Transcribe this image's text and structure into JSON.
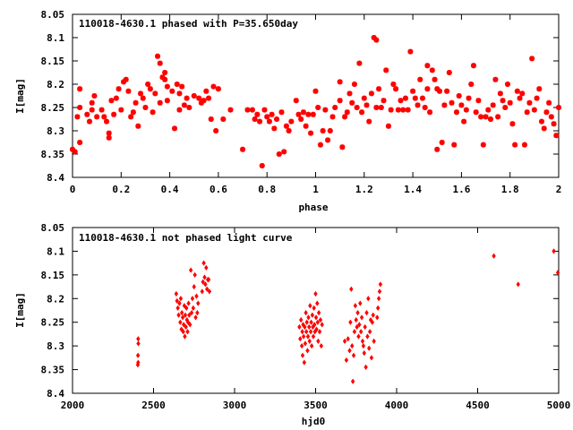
{
  "chart_data": [
    {
      "type": "scatter",
      "title": "110018-4630.1 phased with P=35.650day",
      "xlabel": "phase",
      "ylabel": "I[mag]",
      "xlim": [
        0,
        2
      ],
      "ylim": [
        8.4,
        8.05
      ],
      "y_inverted": true,
      "grid": false,
      "marker_color": "#ff0000",
      "xticks": [
        "0",
        "0.2",
        "0.4",
        "0.6",
        "0.8",
        "1",
        "1.2",
        "1.4",
        "1.6",
        "1.8",
        "2"
      ],
      "yticks": [
        "8.05",
        "8.1",
        "8.15",
        "8.2",
        "8.25",
        "8.3",
        "8.35",
        "8.4"
      ],
      "points": [
        [
          0.0,
          8.34
        ],
        [
          0.01,
          8.345
        ],
        [
          0.02,
          8.27
        ],
        [
          0.03,
          8.325
        ],
        [
          0.03,
          8.21
        ],
        [
          0.03,
          8.25
        ],
        [
          0.06,
          8.265
        ],
        [
          0.07,
          8.28
        ],
        [
          0.08,
          8.255
        ],
        [
          0.08,
          8.24
        ],
        [
          0.09,
          8.225
        ],
        [
          0.1,
          8.27
        ],
        [
          0.12,
          8.255
        ],
        [
          0.13,
          8.27
        ],
        [
          0.14,
          8.28
        ],
        [
          0.15,
          8.305
        ],
        [
          0.15,
          8.315
        ],
        [
          0.16,
          8.235
        ],
        [
          0.17,
          8.265
        ],
        [
          0.18,
          8.23
        ],
        [
          0.19,
          8.21
        ],
        [
          0.2,
          8.255
        ],
        [
          0.21,
          8.195
        ],
        [
          0.22,
          8.19
        ],
        [
          0.23,
          8.215
        ],
        [
          0.24,
          8.27
        ],
        [
          0.25,
          8.26
        ],
        [
          0.26,
          8.24
        ],
        [
          0.27,
          8.29
        ],
        [
          0.28,
          8.22
        ],
        [
          0.29,
          8.23
        ],
        [
          0.3,
          8.25
        ],
        [
          0.31,
          8.2
        ],
        [
          0.32,
          8.21
        ],
        [
          0.33,
          8.26
        ],
        [
          0.34,
          8.22
        ],
        [
          0.35,
          8.14
        ],
        [
          0.36,
          8.155
        ],
        [
          0.36,
          8.24
        ],
        [
          0.37,
          8.185
        ],
        [
          0.38,
          8.19
        ],
        [
          0.38,
          8.175
        ],
        [
          0.39,
          8.205
        ],
        [
          0.39,
          8.235
        ],
        [
          0.41,
          8.215
        ],
        [
          0.42,
          8.295
        ],
        [
          0.43,
          8.2
        ],
        [
          0.44,
          8.255
        ],
        [
          0.44,
          8.22
        ],
        [
          0.45,
          8.205
        ],
        [
          0.46,
          8.245
        ],
        [
          0.47,
          8.23
        ],
        [
          0.48,
          8.25
        ],
        [
          0.5,
          8.225
        ],
        [
          0.52,
          8.23
        ],
        [
          0.53,
          8.24
        ],
        [
          0.54,
          8.235
        ],
        [
          0.55,
          8.215
        ],
        [
          0.56,
          8.23
        ],
        [
          0.57,
          8.275
        ],
        [
          0.58,
          8.205
        ],
        [
          0.59,
          8.3
        ],
        [
          0.6,
          8.21
        ],
        [
          0.62,
          8.275
        ],
        [
          0.65,
          8.255
        ],
        [
          0.7,
          8.34
        ],
        [
          0.72,
          8.255
        ],
        [
          0.74,
          8.255
        ],
        [
          0.75,
          8.275
        ],
        [
          0.76,
          8.265
        ],
        [
          0.77,
          8.28
        ],
        [
          0.78,
          8.375
        ],
        [
          0.79,
          8.255
        ],
        [
          0.8,
          8.27
        ],
        [
          0.81,
          8.28
        ],
        [
          0.82,
          8.265
        ],
        [
          0.83,
          8.295
        ],
        [
          0.84,
          8.275
        ],
        [
          0.85,
          8.35
        ],
        [
          0.86,
          8.26
        ],
        [
          0.87,
          8.345
        ],
        [
          0.88,
          8.29
        ],
        [
          0.89,
          8.3
        ],
        [
          0.9,
          8.28
        ],
        [
          0.92,
          8.235
        ],
        [
          0.93,
          8.265
        ],
        [
          0.94,
          8.275
        ],
        [
          0.95,
          8.26
        ],
        [
          0.96,
          8.29
        ],
        [
          0.97,
          8.265
        ],
        [
          0.98,
          8.305
        ],
        [
          0.99,
          8.265
        ],
        [
          1.0,
          8.215
        ],
        [
          1.01,
          8.25
        ],
        [
          1.02,
          8.33
        ],
        [
          1.03,
          8.3
        ],
        [
          1.04,
          8.255
        ],
        [
          1.05,
          8.32
        ],
        [
          1.06,
          8.3
        ],
        [
          1.07,
          8.27
        ],
        [
          1.08,
          8.25
        ],
        [
          1.1,
          8.235
        ],
        [
          1.1,
          8.195
        ],
        [
          1.11,
          8.335
        ],
        [
          1.12,
          8.27
        ],
        [
          1.13,
          8.26
        ],
        [
          1.14,
          8.22
        ],
        [
          1.15,
          8.24
        ],
        [
          1.16,
          8.2
        ],
        [
          1.17,
          8.25
        ],
        [
          1.18,
          8.155
        ],
        [
          1.19,
          8.26
        ],
        [
          1.2,
          8.23
        ],
        [
          1.21,
          8.245
        ],
        [
          1.22,
          8.28
        ],
        [
          1.23,
          8.22
        ],
        [
          1.24,
          8.1
        ],
        [
          1.25,
          8.105
        ],
        [
          1.25,
          8.25
        ],
        [
          1.26,
          8.21
        ],
        [
          1.27,
          8.25
        ],
        [
          1.28,
          8.235
        ],
        [
          1.29,
          8.17
        ],
        [
          1.3,
          8.29
        ],
        [
          1.31,
          8.255
        ],
        [
          1.32,
          8.2
        ],
        [
          1.33,
          8.21
        ],
        [
          1.34,
          8.255
        ],
        [
          1.35,
          8.235
        ],
        [
          1.36,
          8.255
        ],
        [
          1.37,
          8.23
        ],
        [
          1.38,
          8.255
        ],
        [
          1.39,
          8.13
        ],
        [
          1.4,
          8.215
        ],
        [
          1.41,
          8.23
        ],
        [
          1.42,
          8.245
        ],
        [
          1.43,
          8.19
        ],
        [
          1.44,
          8.23
        ],
        [
          1.45,
          8.25
        ],
        [
          1.46,
          8.21
        ],
        [
          1.46,
          8.16
        ],
        [
          1.47,
          8.26
        ],
        [
          1.48,
          8.17
        ],
        [
          1.49,
          8.19
        ],
        [
          1.5,
          8.21
        ],
        [
          1.5,
          8.34
        ],
        [
          1.51,
          8.215
        ],
        [
          1.52,
          8.325
        ],
        [
          1.53,
          8.245
        ],
        [
          1.54,
          8.215
        ],
        [
          1.55,
          8.175
        ],
        [
          1.56,
          8.24
        ],
        [
          1.57,
          8.33
        ],
        [
          1.58,
          8.26
        ],
        [
          1.59,
          8.225
        ],
        [
          1.6,
          8.245
        ],
        [
          1.61,
          8.28
        ],
        [
          1.62,
          8.255
        ],
        [
          1.63,
          8.23
        ],
        [
          1.64,
          8.2
        ],
        [
          1.65,
          8.16
        ],
        [
          1.66,
          8.26
        ],
        [
          1.67,
          8.235
        ],
        [
          1.68,
          8.27
        ],
        [
          1.69,
          8.33
        ],
        [
          1.7,
          8.27
        ],
        [
          1.71,
          8.255
        ],
        [
          1.72,
          8.275
        ],
        [
          1.73,
          8.245
        ],
        [
          1.74,
          8.19
        ],
        [
          1.75,
          8.27
        ],
        [
          1.76,
          8.22
        ],
        [
          1.77,
          8.235
        ],
        [
          1.78,
          8.25
        ],
        [
          1.79,
          8.2
        ],
        [
          1.8,
          8.24
        ],
        [
          1.81,
          8.285
        ],
        [
          1.82,
          8.33
        ],
        [
          1.83,
          8.215
        ],
        [
          1.84,
          8.23
        ],
        [
          1.85,
          8.22
        ],
        [
          1.86,
          8.33
        ],
        [
          1.87,
          8.26
        ],
        [
          1.88,
          8.24
        ],
        [
          1.89,
          8.145
        ],
        [
          1.9,
          8.255
        ],
        [
          1.91,
          8.23
        ],
        [
          1.92,
          8.21
        ],
        [
          1.93,
          8.28
        ],
        [
          1.94,
          8.295
        ],
        [
          1.95,
          8.26
        ],
        [
          1.96,
          8.24
        ],
        [
          1.97,
          8.27
        ],
        [
          1.98,
          8.285
        ],
        [
          1.99,
          8.31
        ],
        [
          2.0,
          8.25
        ]
      ]
    },
    {
      "type": "scatter",
      "title": "110018-4630.1 not phased light curve",
      "xlabel": "hjd0",
      "ylabel": "I[mag]",
      "xlim": [
        2000,
        5000
      ],
      "ylim": [
        8.4,
        8.05
      ],
      "y_inverted": true,
      "grid": false,
      "marker_color": "#ff0000",
      "xticks": [
        "2000",
        "2500",
        "3000",
        "3500",
        "4000",
        "4500",
        "5000"
      ],
      "yticks": [
        "8.05",
        "8.1",
        "8.15",
        "8.2",
        "8.25",
        "8.3",
        "8.35",
        "8.4"
      ],
      "points": [
        [
          2405,
          8.285
        ],
        [
          2406,
          8.295
        ],
        [
          2404,
          8.32
        ],
        [
          2405,
          8.335
        ],
        [
          2403,
          8.34
        ],
        [
          2640,
          8.19
        ],
        [
          2645,
          8.205
        ],
        [
          2650,
          8.22
        ],
        [
          2655,
          8.235
        ],
        [
          2660,
          8.21
        ],
        [
          2665,
          8.25
        ],
        [
          2668,
          8.2
        ],
        [
          2672,
          8.265
        ],
        [
          2675,
          8.23
        ],
        [
          2680,
          8.24
        ],
        [
          2683,
          8.27
        ],
        [
          2686,
          8.255
        ],
        [
          2690,
          8.215
        ],
        [
          2693,
          8.28
        ],
        [
          2696,
          8.235
        ],
        [
          2700,
          8.26
        ],
        [
          2703,
          8.22
        ],
        [
          2706,
          8.245
        ],
        [
          2710,
          8.27
        ],
        [
          2713,
          8.25
        ],
        [
          2716,
          8.21
        ],
        [
          2720,
          8.235
        ],
        [
          2725,
          8.255
        ],
        [
          2730,
          8.14
        ],
        [
          2735,
          8.23
        ],
        [
          2740,
          8.2
        ],
        [
          2745,
          8.22
        ],
        [
          2750,
          8.175
        ],
        [
          2755,
          8.15
        ],
        [
          2760,
          8.24
        ],
        [
          2765,
          8.195
        ],
        [
          2770,
          8.23
        ],
        [
          2775,
          8.21
        ],
        [
          2800,
          8.185
        ],
        [
          2805,
          8.165
        ],
        [
          2810,
          8.125
        ],
        [
          2815,
          8.155
        ],
        [
          2820,
          8.17
        ],
        [
          2825,
          8.135
        ],
        [
          2830,
          8.18
        ],
        [
          2835,
          8.16
        ],
        [
          2840,
          8.16
        ],
        [
          2845,
          8.185
        ],
        [
          3400,
          8.26
        ],
        [
          3405,
          8.285
        ],
        [
          3410,
          8.245
        ],
        [
          3415,
          8.3
        ],
        [
          3418,
          8.27
        ],
        [
          3420,
          8.32
        ],
        [
          3423,
          8.255
        ],
        [
          3426,
          8.28
        ],
        [
          3430,
          8.335
        ],
        [
          3433,
          8.26
        ],
        [
          3436,
          8.295
        ],
        [
          3440,
          8.23
        ],
        [
          3443,
          8.27
        ],
        [
          3446,
          8.25
        ],
        [
          3450,
          8.31
        ],
        [
          3453,
          8.28
        ],
        [
          3456,
          8.24
        ],
        [
          3460,
          8.26
        ],
        [
          3463,
          8.29
        ],
        [
          3466,
          8.215
        ],
        [
          3470,
          8.27
        ],
        [
          3473,
          8.25
        ],
        [
          3476,
          8.3
        ],
        [
          3480,
          8.235
        ],
        [
          3483,
          8.26
        ],
        [
          3486,
          8.28
        ],
        [
          3490,
          8.22
        ],
        [
          3493,
          8.255
        ],
        [
          3496,
          8.27
        ],
        [
          3500,
          8.19
        ],
        [
          3503,
          8.24
        ],
        [
          3506,
          8.265
        ],
        [
          3510,
          8.21
        ],
        [
          3513,
          8.25
        ],
        [
          3516,
          8.29
        ],
        [
          3520,
          8.23
        ],
        [
          3525,
          8.27
        ],
        [
          3530,
          8.245
        ],
        [
          3535,
          8.3
        ],
        [
          3540,
          8.255
        ],
        [
          3680,
          8.29
        ],
        [
          3690,
          8.33
        ],
        [
          3700,
          8.285
        ],
        [
          3710,
          8.31
        ],
        [
          3715,
          8.25
        ],
        [
          3720,
          8.18
        ],
        [
          3725,
          8.3
        ],
        [
          3730,
          8.375
        ],
        [
          3735,
          8.32
        ],
        [
          3740,
          8.27
        ],
        [
          3745,
          8.215
        ],
        [
          3750,
          8.245
        ],
        [
          3755,
          8.26
        ],
        [
          3760,
          8.23
        ],
        [
          3765,
          8.28
        ],
        [
          3770,
          8.255
        ],
        [
          3775,
          8.21
        ],
        [
          3780,
          8.27
        ],
        [
          3785,
          8.24
        ],
        [
          3790,
          8.29
        ],
        [
          3795,
          8.3
        ],
        [
          3800,
          8.315
        ],
        [
          3805,
          8.26
        ],
        [
          3810,
          8.345
        ],
        [
          3815,
          8.23
        ],
        [
          3820,
          8.28
        ],
        [
          3825,
          8.2
        ],
        [
          3830,
          8.305
        ],
        [
          3835,
          8.27
        ],
        [
          3840,
          8.245
        ],
        [
          3845,
          8.325
        ],
        [
          3850,
          8.25
        ],
        [
          3855,
          8.235
        ],
        [
          3860,
          8.29
        ],
        [
          3880,
          8.24
        ],
        [
          3885,
          8.22
        ],
        [
          3890,
          8.2
        ],
        [
          3895,
          8.185
        ],
        [
          3900,
          8.17
        ],
        [
          4600,
          8.11
        ],
        [
          4750,
          8.17
        ],
        [
          4970,
          8.1
        ],
        [
          4995,
          8.145
        ]
      ]
    }
  ]
}
